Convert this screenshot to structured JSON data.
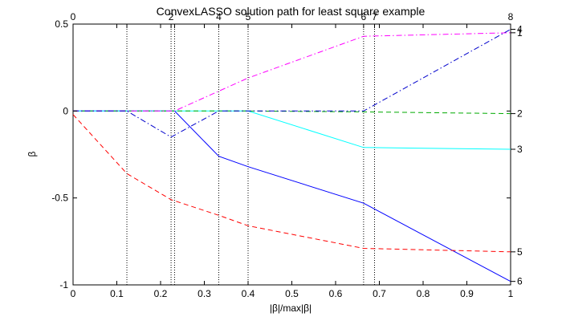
{
  "chart_data": {
    "type": "line",
    "title": "ConvexLASSO solution path for least square example",
    "xlabel": "|β|/max|β|",
    "ylabel": "β",
    "xlim": [
      0,
      1
    ],
    "ylim": [
      -1,
      0.5
    ],
    "x_ticks": [
      "0",
      "0.1",
      "0.2",
      "0.3",
      "0.4",
      "0.5",
      "0.6",
      "0.7",
      "0.8",
      "0.9",
      "1"
    ],
    "y_ticks": [
      "-1",
      "-0.5",
      "0",
      "0.5"
    ],
    "grid": false,
    "step_markers": [
      {
        "x": 0.123,
        "label": ""
      },
      {
        "x": 0.224,
        "label": "2"
      },
      {
        "x": 0.232,
        "label": ""
      },
      {
        "x": 0.333,
        "label": "4"
      },
      {
        "x": 0.4,
        "label": "5"
      },
      {
        "x": 0.664,
        "label": "6"
      },
      {
        "x": 0.689,
        "label": "7"
      }
    ],
    "top_axis_end_labels": [
      "0",
      "8"
    ],
    "series": [
      {
        "color": "#0000ff",
        "dash": "solid",
        "end_label": "6",
        "points": [
          [
            0,
            0
          ],
          [
            0.232,
            0
          ],
          [
            0.333,
            -0.26
          ],
          [
            0.4,
            -0.32
          ],
          [
            0.664,
            -0.53
          ],
          [
            1.0,
            -0.98
          ]
        ]
      },
      {
        "color": "#ff0000",
        "dash": "dashed",
        "end_label": "5",
        "points": [
          [
            0,
            -0.02
          ],
          [
            0.123,
            -0.36
          ],
          [
            0.224,
            -0.51
          ],
          [
            0.333,
            -0.6
          ],
          [
            0.4,
            -0.66
          ],
          [
            0.664,
            -0.79
          ],
          [
            1.0,
            -0.81
          ]
        ]
      },
      {
        "color": "#00ffff",
        "dash": "solid",
        "end_label": "3",
        "points": [
          [
            0,
            0
          ],
          [
            0.4,
            0
          ],
          [
            0.664,
            -0.21
          ],
          [
            1.0,
            -0.22
          ]
        ]
      },
      {
        "color": "#00aa00",
        "dash": "dashed",
        "end_label": "2",
        "points": [
          [
            0,
            0
          ],
          [
            0.4,
            0
          ],
          [
            0.664,
            -0.005
          ],
          [
            1.0,
            -0.015
          ]
        ]
      },
      {
        "color": "#ff00ff",
        "dash": "dashdot",
        "end_label": "1",
        "points": [
          [
            0,
            0
          ],
          [
            0.232,
            0
          ],
          [
            0.4,
            0.19
          ],
          [
            0.664,
            0.43
          ],
          [
            1.0,
            0.45
          ]
        ]
      },
      {
        "color": "#0000cc",
        "dash": "dashdot",
        "end_label": "4",
        "points": [
          [
            0,
            0
          ],
          [
            0.123,
            0
          ],
          [
            0.224,
            -0.15
          ],
          [
            0.333,
            0
          ],
          [
            0.664,
            0
          ],
          [
            1.0,
            0.47
          ]
        ]
      }
    ]
  }
}
